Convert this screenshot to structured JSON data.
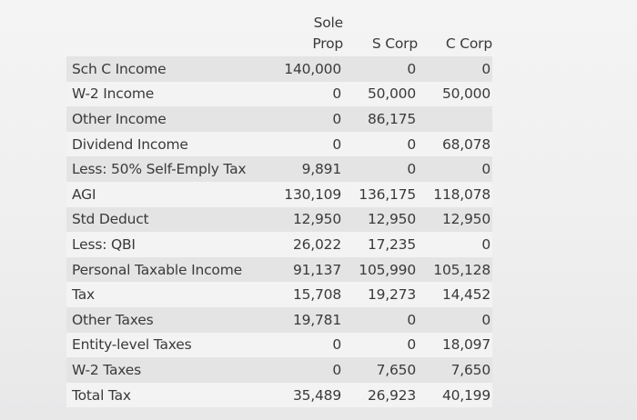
{
  "columns": {
    "sole_prop_line1": "Sole",
    "sole_prop_line2": "Prop",
    "s_corp": "S Corp",
    "c_corp": "C Corp"
  },
  "rows": [
    {
      "label": "Sch C Income",
      "sole_prop": "140,000",
      "s_corp": "0",
      "c_corp": "0"
    },
    {
      "label": "W-2 Income",
      "sole_prop": "0",
      "s_corp": "50,000",
      "c_corp": "50,000"
    },
    {
      "label": "Other Income",
      "sole_prop": "0",
      "s_corp": "86,175",
      "c_corp": ""
    },
    {
      "label": "Dividend Income",
      "sole_prop": "0",
      "s_corp": "0",
      "c_corp": "68,078"
    },
    {
      "label": "Less: 50% Self-Emply Tax",
      "sole_prop": "9,891",
      "s_corp": "0",
      "c_corp": "0"
    },
    {
      "label": "AGI",
      "sole_prop": "130,109",
      "s_corp": "136,175",
      "c_corp": "118,078"
    },
    {
      "label": "Std Deduct",
      "sole_prop": "12,950",
      "s_corp": "12,950",
      "c_corp": "12,950"
    },
    {
      "label": "Less: QBI",
      "sole_prop": "26,022",
      "s_corp": "17,235",
      "c_corp": "0"
    },
    {
      "label": "Personal Taxable Income",
      "sole_prop": "91,137",
      "s_corp": "105,990",
      "c_corp": "105,128"
    },
    {
      "label": "Tax",
      "sole_prop": "15,708",
      "s_corp": "19,273",
      "c_corp": "14,452"
    },
    {
      "label": "Other Taxes",
      "sole_prop": "19,781",
      "s_corp": "0",
      "c_corp": "0"
    },
    {
      "label": "Entity-level Taxes",
      "sole_prop": "0",
      "s_corp": "0",
      "c_corp": "18,097"
    },
    {
      "label": "W-2 Taxes",
      "sole_prop": "0",
      "s_corp": "7,650",
      "c_corp": "7,650"
    },
    {
      "label": "Total Tax",
      "sole_prop": "35,489",
      "s_corp": "26,923",
      "c_corp": "40,199"
    }
  ]
}
